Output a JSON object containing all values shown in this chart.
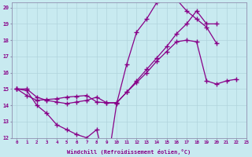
{
  "background_color": "#c8eaf0",
  "grid_color": "#b0d4dc",
  "line_color": "#880088",
  "marker_color": "#880088",
  "line1_x": [
    0,
    1,
    2,
    3,
    4,
    5,
    6,
    7,
    8,
    9,
    10,
    11,
    12,
    13,
    14,
    15,
    16,
    17,
    18,
    19,
    20
  ],
  "line1_y": [
    15.0,
    14.9,
    14.0,
    13.5,
    12.8,
    12.5,
    12.2,
    12.0,
    12.5,
    10.0,
    14.1,
    16.5,
    18.5,
    19.3,
    20.3,
    20.5,
    20.5,
    19.8,
    19.3,
    18.8,
    17.8
  ],
  "line2_x": [
    0,
    1,
    2,
    3,
    4,
    5,
    6,
    7,
    8,
    9,
    10,
    11,
    12,
    13,
    14,
    15,
    16,
    17,
    18,
    19,
    20,
    21,
    22
  ],
  "line2_y": [
    15.0,
    14.6,
    14.3,
    14.35,
    14.4,
    14.5,
    14.55,
    14.6,
    14.2,
    14.15,
    14.15,
    14.8,
    15.4,
    16.0,
    16.7,
    17.3,
    17.9,
    18.0,
    17.9,
    15.5,
    15.3,
    15.5,
    15.6
  ],
  "line3_x": [
    0,
    1,
    2,
    3,
    4,
    5,
    6,
    7,
    8,
    9,
    10,
    11,
    12,
    13,
    14,
    15,
    16,
    17,
    18,
    19,
    20,
    21,
    22
  ],
  "line3_y": [
    15.0,
    15.0,
    14.5,
    14.3,
    14.2,
    14.1,
    14.2,
    14.3,
    14.5,
    14.15,
    14.15,
    14.8,
    15.5,
    16.2,
    16.9,
    17.6,
    18.4,
    19.0,
    19.8,
    19.0,
    19.0,
    null,
    null
  ],
  "xlabel": "Windchill (Refroidissement éolien,°C)",
  "xlim": [
    -0.5,
    23
  ],
  "ylim": [
    12,
    20.3
  ],
  "yticks": [
    12,
    13,
    14,
    15,
    16,
    17,
    18,
    19,
    20
  ],
  "xticks": [
    0,
    1,
    2,
    3,
    4,
    5,
    6,
    7,
    8,
    9,
    10,
    11,
    12,
    13,
    14,
    15,
    16,
    17,
    18,
    19,
    20,
    21,
    22,
    23
  ]
}
